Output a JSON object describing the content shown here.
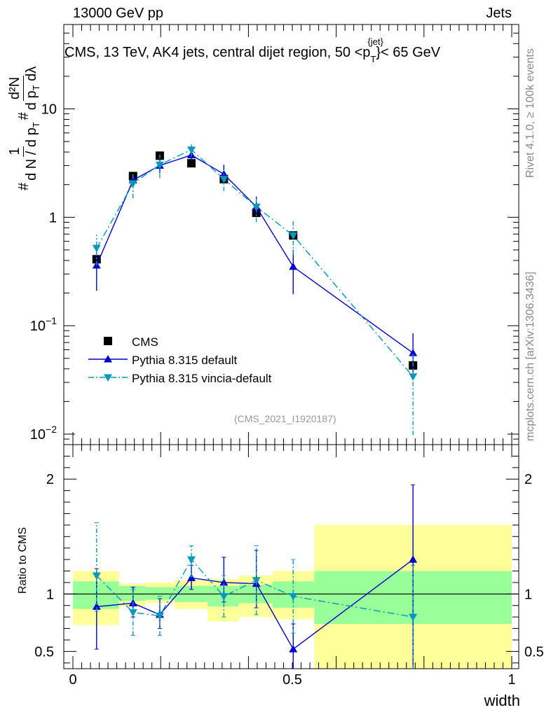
{
  "header": {
    "energy": "13000 GeV pp",
    "category": "Jets",
    "plot_title_main": "CMS, 13 TeV, AK4 jets, central dijet region, 50 <p",
    "plot_title_sup": "{jet}",
    "plot_title_sub": "T",
    "plot_title_end": "}< 65 GeV"
  },
  "side_labels": {
    "rivet": "Rivet 4.1.0, ≥ 100k events",
    "mcplots": "mcplots.cern.ch [arXiv:1306.3436]"
  },
  "watermark": "(CMS_2021_I1920187)",
  "ylabel_main": {
    "lead": "#",
    "frac_num": "1",
    "frac_den": "d N / d p",
    "frac_den_sub": "T",
    "lead2": "#",
    "deriv_num": "d²N",
    "deriv_den": "d p",
    "deriv_den_sub": "T",
    "deriv_den_end": "dλ"
  },
  "ylabel_ratio": "Ratio to CMS",
  "xlabel": "width",
  "chart_data": {
    "type": "line",
    "title": "CMS, 13 TeV, AK4 jets, central dijet region, 50 <p_T^{jet}< 65 GeV",
    "xlabel": "width",
    "xlim": [
      0,
      1
    ],
    "main": {
      "yscale": "log",
      "ylim": [
        0.008,
        60
      ],
      "yticks": [
        {
          "value": 0.01,
          "base": "10",
          "exp": "−2"
        },
        {
          "value": 0.1,
          "base": "10",
          "exp": "−1"
        },
        {
          "value": 1,
          "base": "1",
          "exp": ""
        },
        {
          "value": 10,
          "base": "10",
          "exp": ""
        }
      ],
      "bins": [
        {
          "lo": 0.0,
          "hi": 0.105,
          "x": 0.054
        },
        {
          "lo": 0.105,
          "hi": 0.165,
          "x": 0.137
        },
        {
          "lo": 0.165,
          "hi": 0.232,
          "x": 0.198
        },
        {
          "lo": 0.232,
          "hi": 0.307,
          "x": 0.27
        },
        {
          "lo": 0.307,
          "hi": 0.378,
          "x": 0.344
        },
        {
          "lo": 0.378,
          "hi": 0.455,
          "x": 0.418
        },
        {
          "lo": 0.455,
          "hi": 0.55,
          "x": 0.502
        },
        {
          "lo": 0.55,
          "hi": 1.0,
          "x": 0.775
        }
      ],
      "series": [
        {
          "name": "CMS",
          "style": "data",
          "color": "#000000",
          "values": [
            0.41,
            2.4,
            3.7,
            3.15,
            2.25,
            1.1,
            0.68,
            0.043
          ]
        },
        {
          "name": "Pythia 8.315 default",
          "style": "solid",
          "color": "#0000cc",
          "marker": "triangle-up",
          "values": [
            0.36,
            2.2,
            3.0,
            3.75,
            2.5,
            1.25,
            0.35,
            0.056
          ],
          "err_lo": [
            0.21,
            2.0,
            2.55,
            3.3,
            2.1,
            1.0,
            0.195,
            0.037
          ],
          "err_hi": [
            0.5,
            2.5,
            3.45,
            4.2,
            3.05,
            1.55,
            0.5,
            0.085
          ]
        },
        {
          "name": "Pythia 8.315 vincia-default",
          "style": "dashdot",
          "color": "#0099bb",
          "marker": "triangle-down",
          "values": [
            0.52,
            2.05,
            3.05,
            4.2,
            2.25,
            1.25,
            0.68,
            0.034
          ],
          "err_lo": [
            0.36,
            1.5,
            2.3,
            3.6,
            1.75,
            0.9,
            0.45,
            0.0098
          ],
          "err_hi": [
            0.69,
            2.6,
            3.8,
            4.7,
            2.75,
            1.55,
            0.92,
            0.055
          ]
        }
      ]
    },
    "ratio": {
      "ylabel": "Ratio to CMS",
      "ylim": [
        0.35,
        2.3
      ],
      "yticks": [
        0.5,
        1,
        2
      ],
      "xticks": [
        0,
        0.5,
        1
      ],
      "bands": [
        {
          "lo": 0.0,
          "hi": 0.105,
          "green": [
            0.87,
            1.11
          ],
          "yellow": [
            0.73,
            1.2
          ]
        },
        {
          "lo": 0.105,
          "hi": 0.165,
          "green": [
            0.94,
            1.07
          ],
          "yellow": [
            0.89,
            1.09
          ]
        },
        {
          "lo": 0.165,
          "hi": 0.232,
          "green": [
            0.95,
            1.06
          ],
          "yellow": [
            0.92,
            1.1
          ]
        },
        {
          "lo": 0.232,
          "hi": 0.307,
          "green": [
            0.93,
            1.07
          ],
          "yellow": [
            0.87,
            1.12
          ]
        },
        {
          "lo": 0.307,
          "hi": 0.378,
          "green": [
            0.89,
            1.07
          ],
          "yellow": [
            0.76,
            1.13
          ]
        },
        {
          "lo": 0.378,
          "hi": 0.455,
          "green": [
            0.92,
            1.08
          ],
          "yellow": [
            0.8,
            1.16
          ]
        },
        {
          "lo": 0.455,
          "hi": 0.55,
          "green": [
            0.88,
            1.11
          ],
          "yellow": [
            0.78,
            1.2
          ]
        },
        {
          "lo": 0.55,
          "hi": 1.0,
          "green": [
            0.74,
            1.2
          ],
          "yellow": [
            0.35,
            1.6
          ]
        }
      ],
      "series": [
        {
          "name": "Pythia 8.315 default",
          "values": [
            0.89,
            0.92,
            0.82,
            1.14,
            1.1,
            1.09,
            0.52,
            1.3
          ],
          "err_lo": [
            0.52,
            0.8,
            0.7,
            1.04,
            0.93,
            0.88,
            0.3,
            0.35
          ],
          "err_hi": [
            1.22,
            1.06,
            0.96,
            1.25,
            1.32,
            1.38,
            0.74,
            1.95
          ]
        },
        {
          "name": "Pythia 8.315 vincia-default",
          "values": [
            1.16,
            0.84,
            0.81,
            1.3,
            0.98,
            1.12,
            0.98,
            0.8
          ],
          "err_lo": [
            0.85,
            0.64,
            0.64,
            1.15,
            0.8,
            0.82,
            0.66,
            0.35
          ],
          "err_hi": [
            1.62,
            1.04,
            0.98,
            1.42,
            1.16,
            1.42,
            1.3,
            1.25
          ]
        }
      ]
    },
    "legend": {
      "placement": "bottom-left",
      "entries": [
        "CMS",
        "Pythia 8.315 default",
        "Pythia 8.315 vincia-default"
      ]
    }
  }
}
